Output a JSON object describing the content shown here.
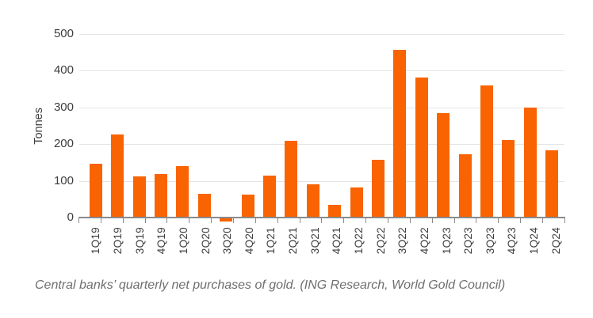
{
  "caption": "Central banks’ quarterly net purchases of gold. (ING Research, World Gold Council)",
  "colors": {
    "bar": "#f96302",
    "gridline": "#e4e4e4",
    "axis_line": "#8a8a8a",
    "tick_label": "#3d3d3d",
    "caption_text": "#6e6e6e",
    "background": "#ffffff"
  },
  "chart_data": {
    "type": "bar",
    "title": "",
    "xlabel": "",
    "ylabel": "Tonnes",
    "ylim": [
      0,
      500
    ],
    "yticks": [
      0,
      100,
      200,
      300,
      400,
      500
    ],
    "grid": "horizontal",
    "legend_position": "none",
    "categories": [
      "1Q19",
      "2Q19",
      "3Q19",
      "4Q19",
      "1Q20",
      "2Q20",
      "3Q20",
      "4Q20",
      "1Q21",
      "2Q21",
      "3Q21",
      "4Q21",
      "1Q22",
      "2Q22",
      "3Q22",
      "4Q22",
      "1Q23",
      "2Q23",
      "3Q23",
      "4Q23",
      "1Q24",
      "2Q24"
    ],
    "values": [
      147,
      226,
      113,
      119,
      141,
      65,
      -8,
      63,
      115,
      209,
      90,
      35,
      83,
      158,
      457,
      381,
      285,
      173,
      359,
      212,
      299,
      184
    ]
  }
}
